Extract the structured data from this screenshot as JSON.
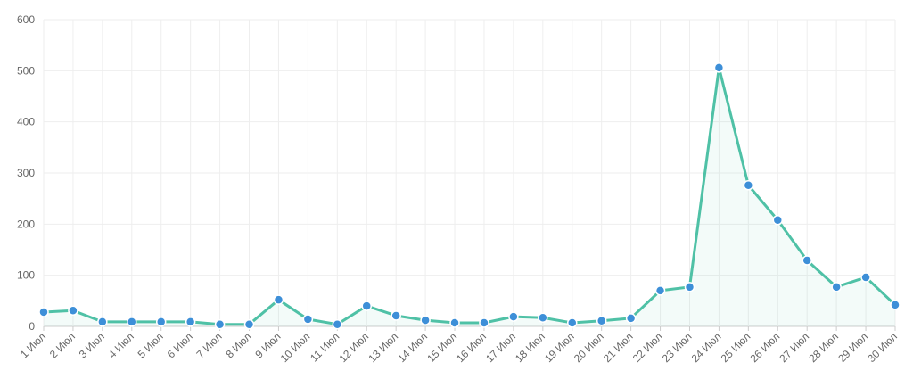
{
  "chart_data": {
    "type": "line",
    "categories": [
      "1 Июл",
      "2 Июл",
      "3 Июл",
      "4 Июл",
      "5 Июл",
      "6 Июл",
      "7 Июл",
      "8 Июл",
      "9 Июл",
      "10 Июл",
      "11 Июл",
      "12 Июл",
      "13 Июл",
      "14 Июл",
      "15 Июл",
      "16 Июл",
      "17 Июл",
      "18 Июл",
      "19 Июл",
      "20 Июл",
      "21 Июл",
      "22 Июл",
      "23 Июл",
      "24 Июл",
      "25 Июл",
      "26 Июл",
      "27 Июл",
      "28 Июл",
      "29 Июл",
      "30 Июл"
    ],
    "series": [
      {
        "color": "#4fc1a6",
        "marker_color": "#3d8fd8",
        "values": [
          28,
          31,
          9,
          9,
          9,
          9,
          4,
          4,
          52,
          14,
          4,
          40,
          21,
          12,
          7,
          7,
          19,
          17,
          7,
          11,
          16,
          70,
          77,
          506,
          276,
          208,
          129,
          77,
          96,
          42
        ]
      }
    ],
    "ylim": [
      0,
      600
    ],
    "yticks": [
      0,
      100,
      200,
      300,
      400,
      500,
      600
    ],
    "grid": true,
    "area": true
  }
}
